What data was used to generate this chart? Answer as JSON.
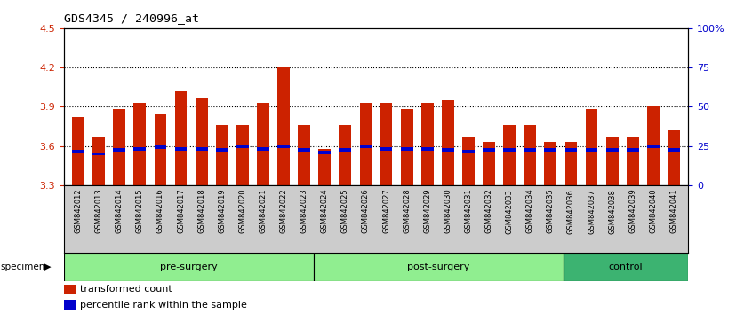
{
  "title": "GDS4345 / 240996_at",
  "categories": [
    "GSM842012",
    "GSM842013",
    "GSM842014",
    "GSM842015",
    "GSM842016",
    "GSM842017",
    "GSM842018",
    "GSM842019",
    "GSM842020",
    "GSM842021",
    "GSM842022",
    "GSM842023",
    "GSM842024",
    "GSM842025",
    "GSM842026",
    "GSM842027",
    "GSM842028",
    "GSM842029",
    "GSM842030",
    "GSM842031",
    "GSM842032",
    "GSM842033",
    "GSM842034",
    "GSM842035",
    "GSM842036",
    "GSM842037",
    "GSM842038",
    "GSM842039",
    "GSM842040",
    "GSM842041"
  ],
  "red_values": [
    3.82,
    3.67,
    3.88,
    3.93,
    3.84,
    4.02,
    3.97,
    3.76,
    3.76,
    3.93,
    4.2,
    3.76,
    3.58,
    3.76,
    3.93,
    3.93,
    3.88,
    3.93,
    3.95,
    3.67,
    3.63,
    3.76,
    3.76,
    3.63,
    3.63,
    3.88,
    3.67,
    3.67,
    3.9,
    3.72
  ],
  "blue_values": [
    3.56,
    3.54,
    3.57,
    3.58,
    3.59,
    3.58,
    3.58,
    3.57,
    3.6,
    3.58,
    3.6,
    3.57,
    3.55,
    3.57,
    3.6,
    3.58,
    3.58,
    3.58,
    3.57,
    3.56,
    3.57,
    3.57,
    3.57,
    3.57,
    3.57,
    3.57,
    3.57,
    3.57,
    3.6,
    3.57
  ],
  "groups": [
    {
      "label": "pre-surgery",
      "start": 0,
      "end": 12
    },
    {
      "label": "post-surgery",
      "start": 12,
      "end": 24
    },
    {
      "label": "control",
      "start": 24,
      "end": 30
    }
  ],
  "group_colors_light": "#90EE90",
  "group_color_dark": "#3CB371",
  "ylim_left": [
    3.3,
    4.5
  ],
  "ylim_right": [
    0,
    100
  ],
  "yticks_left": [
    3.3,
    3.6,
    3.9,
    4.2,
    4.5
  ],
  "yticks_right": [
    0,
    25,
    50,
    75,
    100
  ],
  "ytick_labels_right": [
    "0",
    "25",
    "50",
    "75",
    "100%"
  ],
  "dotted_lines": [
    3.6,
    3.9,
    4.2
  ],
  "bar_color": "#CC2200",
  "blue_color": "#0000CC",
  "bar_width": 0.6,
  "bg_color": "#FFFFFF",
  "plot_bg": "#FFFFFF",
  "left_tick_color": "#CC2200",
  "right_tick_color": "#0000CC",
  "xtick_bg": "#CCCCCC"
}
